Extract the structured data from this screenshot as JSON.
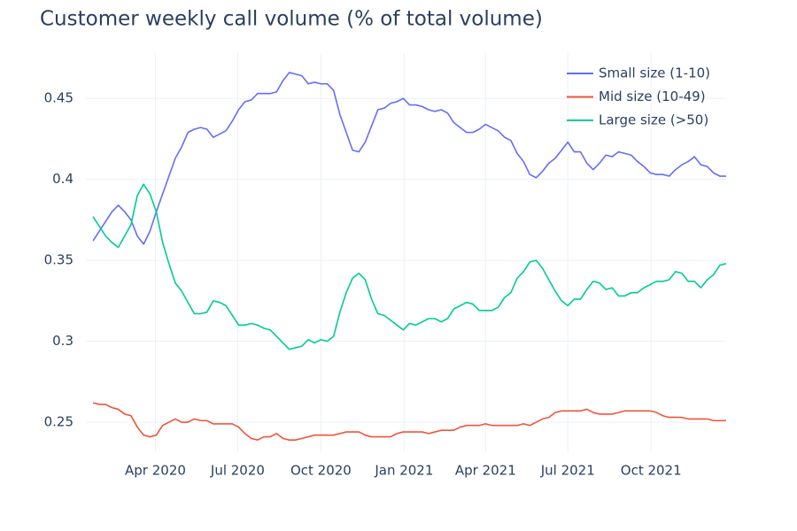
{
  "chart_data": {
    "type": "line",
    "title": "Customer weekly call volume (% of total volume)",
    "x": [
      "2020-01-23",
      "2020-01-30",
      "2020-02-06",
      "2020-02-13",
      "2020-02-20",
      "2020-02-27",
      "2020-03-05",
      "2020-03-12",
      "2020-03-19",
      "2020-03-26",
      "2020-04-02",
      "2020-04-09",
      "2020-04-16",
      "2020-04-23",
      "2020-04-30",
      "2020-05-07",
      "2020-05-14",
      "2020-05-21",
      "2020-05-28",
      "2020-06-04",
      "2020-06-11",
      "2020-06-18",
      "2020-06-25",
      "2020-07-02",
      "2020-07-09",
      "2020-07-16",
      "2020-07-23",
      "2020-07-30",
      "2020-08-06",
      "2020-08-13",
      "2020-08-20",
      "2020-08-27",
      "2020-09-03",
      "2020-09-10",
      "2020-09-17",
      "2020-09-24",
      "2020-10-01",
      "2020-10-08",
      "2020-10-15",
      "2020-10-22",
      "2020-10-29",
      "2020-11-05",
      "2020-11-12",
      "2020-11-19",
      "2020-11-26",
      "2020-12-03",
      "2020-12-10",
      "2020-12-17",
      "2020-12-24",
      "2020-12-31",
      "2021-01-07",
      "2021-01-14",
      "2021-01-21",
      "2021-01-28",
      "2021-02-04",
      "2021-02-11",
      "2021-02-18",
      "2021-02-25",
      "2021-03-04",
      "2021-03-11",
      "2021-03-18",
      "2021-03-25",
      "2021-04-01",
      "2021-04-08",
      "2021-04-15",
      "2021-04-22",
      "2021-04-29",
      "2021-05-06",
      "2021-05-13",
      "2021-05-20",
      "2021-05-27",
      "2021-06-03",
      "2021-06-10",
      "2021-06-17",
      "2021-06-24",
      "2021-07-01",
      "2021-07-08",
      "2021-07-15",
      "2021-07-22",
      "2021-07-29",
      "2021-08-05",
      "2021-08-12",
      "2021-08-19",
      "2021-08-26",
      "2021-09-02",
      "2021-09-09",
      "2021-09-16",
      "2021-09-23",
      "2021-09-30",
      "2021-10-07",
      "2021-10-14",
      "2021-10-21",
      "2021-10-28",
      "2021-11-04",
      "2021-11-11",
      "2021-11-18",
      "2021-11-25",
      "2021-12-02",
      "2021-12-09",
      "2021-12-16",
      "2021-12-23"
    ],
    "series": [
      {
        "name": "Small size (1-10)",
        "color": "#636efa",
        "values": [
          0.362,
          0.368,
          0.374,
          0.38,
          0.384,
          0.38,
          0.375,
          0.365,
          0.36,
          0.368,
          0.38,
          0.391,
          0.402,
          0.413,
          0.42,
          0.429,
          0.431,
          0.432,
          0.431,
          0.426,
          0.428,
          0.43,
          0.436,
          0.443,
          0.448,
          0.449,
          0.453,
          0.453,
          0.453,
          0.454,
          0.461,
          0.466,
          0.465,
          0.464,
          0.459,
          0.46,
          0.459,
          0.459,
          0.455,
          0.44,
          0.429,
          0.418,
          0.417,
          0.423,
          0.433,
          0.443,
          0.444,
          0.447,
          0.448,
          0.45,
          0.446,
          0.446,
          0.445,
          0.443,
          0.442,
          0.443,
          0.441,
          0.435,
          0.432,
          0.429,
          0.429,
          0.431,
          0.434,
          0.432,
          0.43,
          0.426,
          0.424,
          0.416,
          0.411,
          0.403,
          0.401,
          0.405,
          0.41,
          0.413,
          0.418,
          0.423,
          0.417,
          0.417,
          0.41,
          0.406,
          0.41,
          0.415,
          0.414,
          0.417,
          0.416,
          0.415,
          0.411,
          0.408,
          0.404,
          0.403,
          0.403,
          0.402,
          0.406,
          0.409,
          0.411,
          0.414,
          0.409,
          0.408,
          0.404,
          0.402,
          0.402
        ]
      },
      {
        "name": "Mid size (10-49)",
        "color": "#ef553b",
        "values": [
          0.262,
          0.261,
          0.261,
          0.259,
          0.258,
          0.255,
          0.254,
          0.247,
          0.242,
          0.241,
          0.242,
          0.248,
          0.25,
          0.252,
          0.25,
          0.25,
          0.252,
          0.251,
          0.251,
          0.249,
          0.249,
          0.249,
          0.249,
          0.247,
          0.243,
          0.24,
          0.239,
          0.241,
          0.241,
          0.243,
          0.24,
          0.239,
          0.239,
          0.24,
          0.241,
          0.242,
          0.242,
          0.242,
          0.242,
          0.243,
          0.244,
          0.244,
          0.244,
          0.242,
          0.241,
          0.241,
          0.241,
          0.241,
          0.243,
          0.244,
          0.244,
          0.244,
          0.244,
          0.243,
          0.244,
          0.245,
          0.245,
          0.245,
          0.247,
          0.248,
          0.248,
          0.248,
          0.249,
          0.248,
          0.248,
          0.248,
          0.248,
          0.248,
          0.249,
          0.248,
          0.25,
          0.252,
          0.253,
          0.256,
          0.257,
          0.257,
          0.257,
          0.257,
          0.258,
          0.256,
          0.255,
          0.255,
          0.255,
          0.256,
          0.257,
          0.257,
          0.257,
          0.257,
          0.257,
          0.256,
          0.254,
          0.253,
          0.253,
          0.253,
          0.252,
          0.252,
          0.252,
          0.252,
          0.251,
          0.251,
          0.251
        ]
      },
      {
        "name": "Large size (>50)",
        "color": "#00cc96",
        "values": [
          0.377,
          0.371,
          0.365,
          0.361,
          0.358,
          0.365,
          0.372,
          0.39,
          0.397,
          0.391,
          0.38,
          0.361,
          0.348,
          0.336,
          0.331,
          0.324,
          0.317,
          0.317,
          0.318,
          0.325,
          0.324,
          0.322,
          0.316,
          0.31,
          0.31,
          0.311,
          0.31,
          0.308,
          0.307,
          0.303,
          0.299,
          0.295,
          0.296,
          0.297,
          0.301,
          0.299,
          0.301,
          0.3,
          0.303,
          0.318,
          0.33,
          0.339,
          0.342,
          0.338,
          0.326,
          0.317,
          0.316,
          0.313,
          0.31,
          0.307,
          0.311,
          0.31,
          0.312,
          0.314,
          0.314,
          0.312,
          0.314,
          0.32,
          0.322,
          0.324,
          0.323,
          0.319,
          0.319,
          0.319,
          0.321,
          0.327,
          0.33,
          0.339,
          0.343,
          0.349,
          0.35,
          0.345,
          0.338,
          0.331,
          0.325,
          0.322,
          0.326,
          0.326,
          0.332,
          0.337,
          0.336,
          0.332,
          0.333,
          0.328,
          0.328,
          0.33,
          0.33,
          0.333,
          0.335,
          0.337,
          0.337,
          0.338,
          0.343,
          0.342,
          0.337,
          0.337,
          0.333,
          0.338,
          0.341,
          0.347,
          0.348
        ]
      }
    ],
    "xlim": [
      "2020-01-23",
      "2021-12-23"
    ],
    "xticks": [
      {
        "value": "2020-04-01",
        "label": "Apr 2020"
      },
      {
        "value": "2020-07-01",
        "label": "Jul 2020"
      },
      {
        "value": "2020-10-01",
        "label": "Oct 2020"
      },
      {
        "value": "2021-01-01",
        "label": "Jan 2021"
      },
      {
        "value": "2021-04-01",
        "label": "Apr 2021"
      },
      {
        "value": "2021-07-01",
        "label": "Jul 2021"
      },
      {
        "value": "2021-10-01",
        "label": "Oct 2021"
      }
    ],
    "ylim": [
      0.232,
      0.478
    ],
    "yticks": [
      0.25,
      0.3,
      0.35,
      0.4,
      0.45
    ],
    "grid": true,
    "legend": "top-right"
  }
}
